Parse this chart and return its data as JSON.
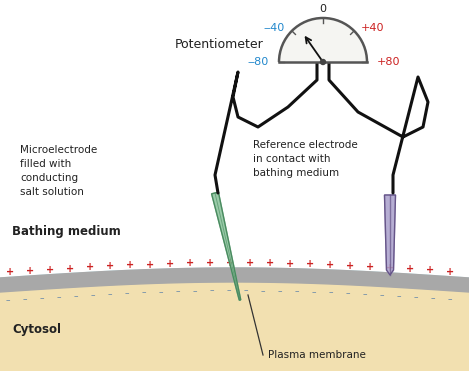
{
  "bathing_color": "#c5e8f0",
  "cytosol_color": "#f2e0b0",
  "membrane_color": "#a8a8a8",
  "plus_color": "#cc2222",
  "minus_color": "#6688aa",
  "needle_green_body": "#88c49a",
  "needle_green_dark": "#4a8a60",
  "needle_purple_body": "#aaa0cc",
  "needle_purple_dark": "#665588",
  "wire_color": "#111111",
  "meter_bg": "#f5f5f2",
  "meter_border": "#555555",
  "text_neg_color": "#2288cc",
  "text_pos_color": "#cc2222",
  "text_color": "#222222",
  "title": "Potentiometer",
  "label_micro": "Microelectrode\nfilled with\nconducting\nsalt solution",
  "label_ref": "Reference electrode\nin contact with\nbathing medium",
  "label_bathing": "Bathing medium",
  "label_cytosol": "Cytosol",
  "label_plasma": "Plasma membrane",
  "meter_zero": "0",
  "meter_n40": "‒40",
  "meter_p40": "+40",
  "meter_n80": "‒80",
  "meter_p80": "+80",
  "figw": 4.69,
  "figh": 3.71,
  "dpi": 100
}
